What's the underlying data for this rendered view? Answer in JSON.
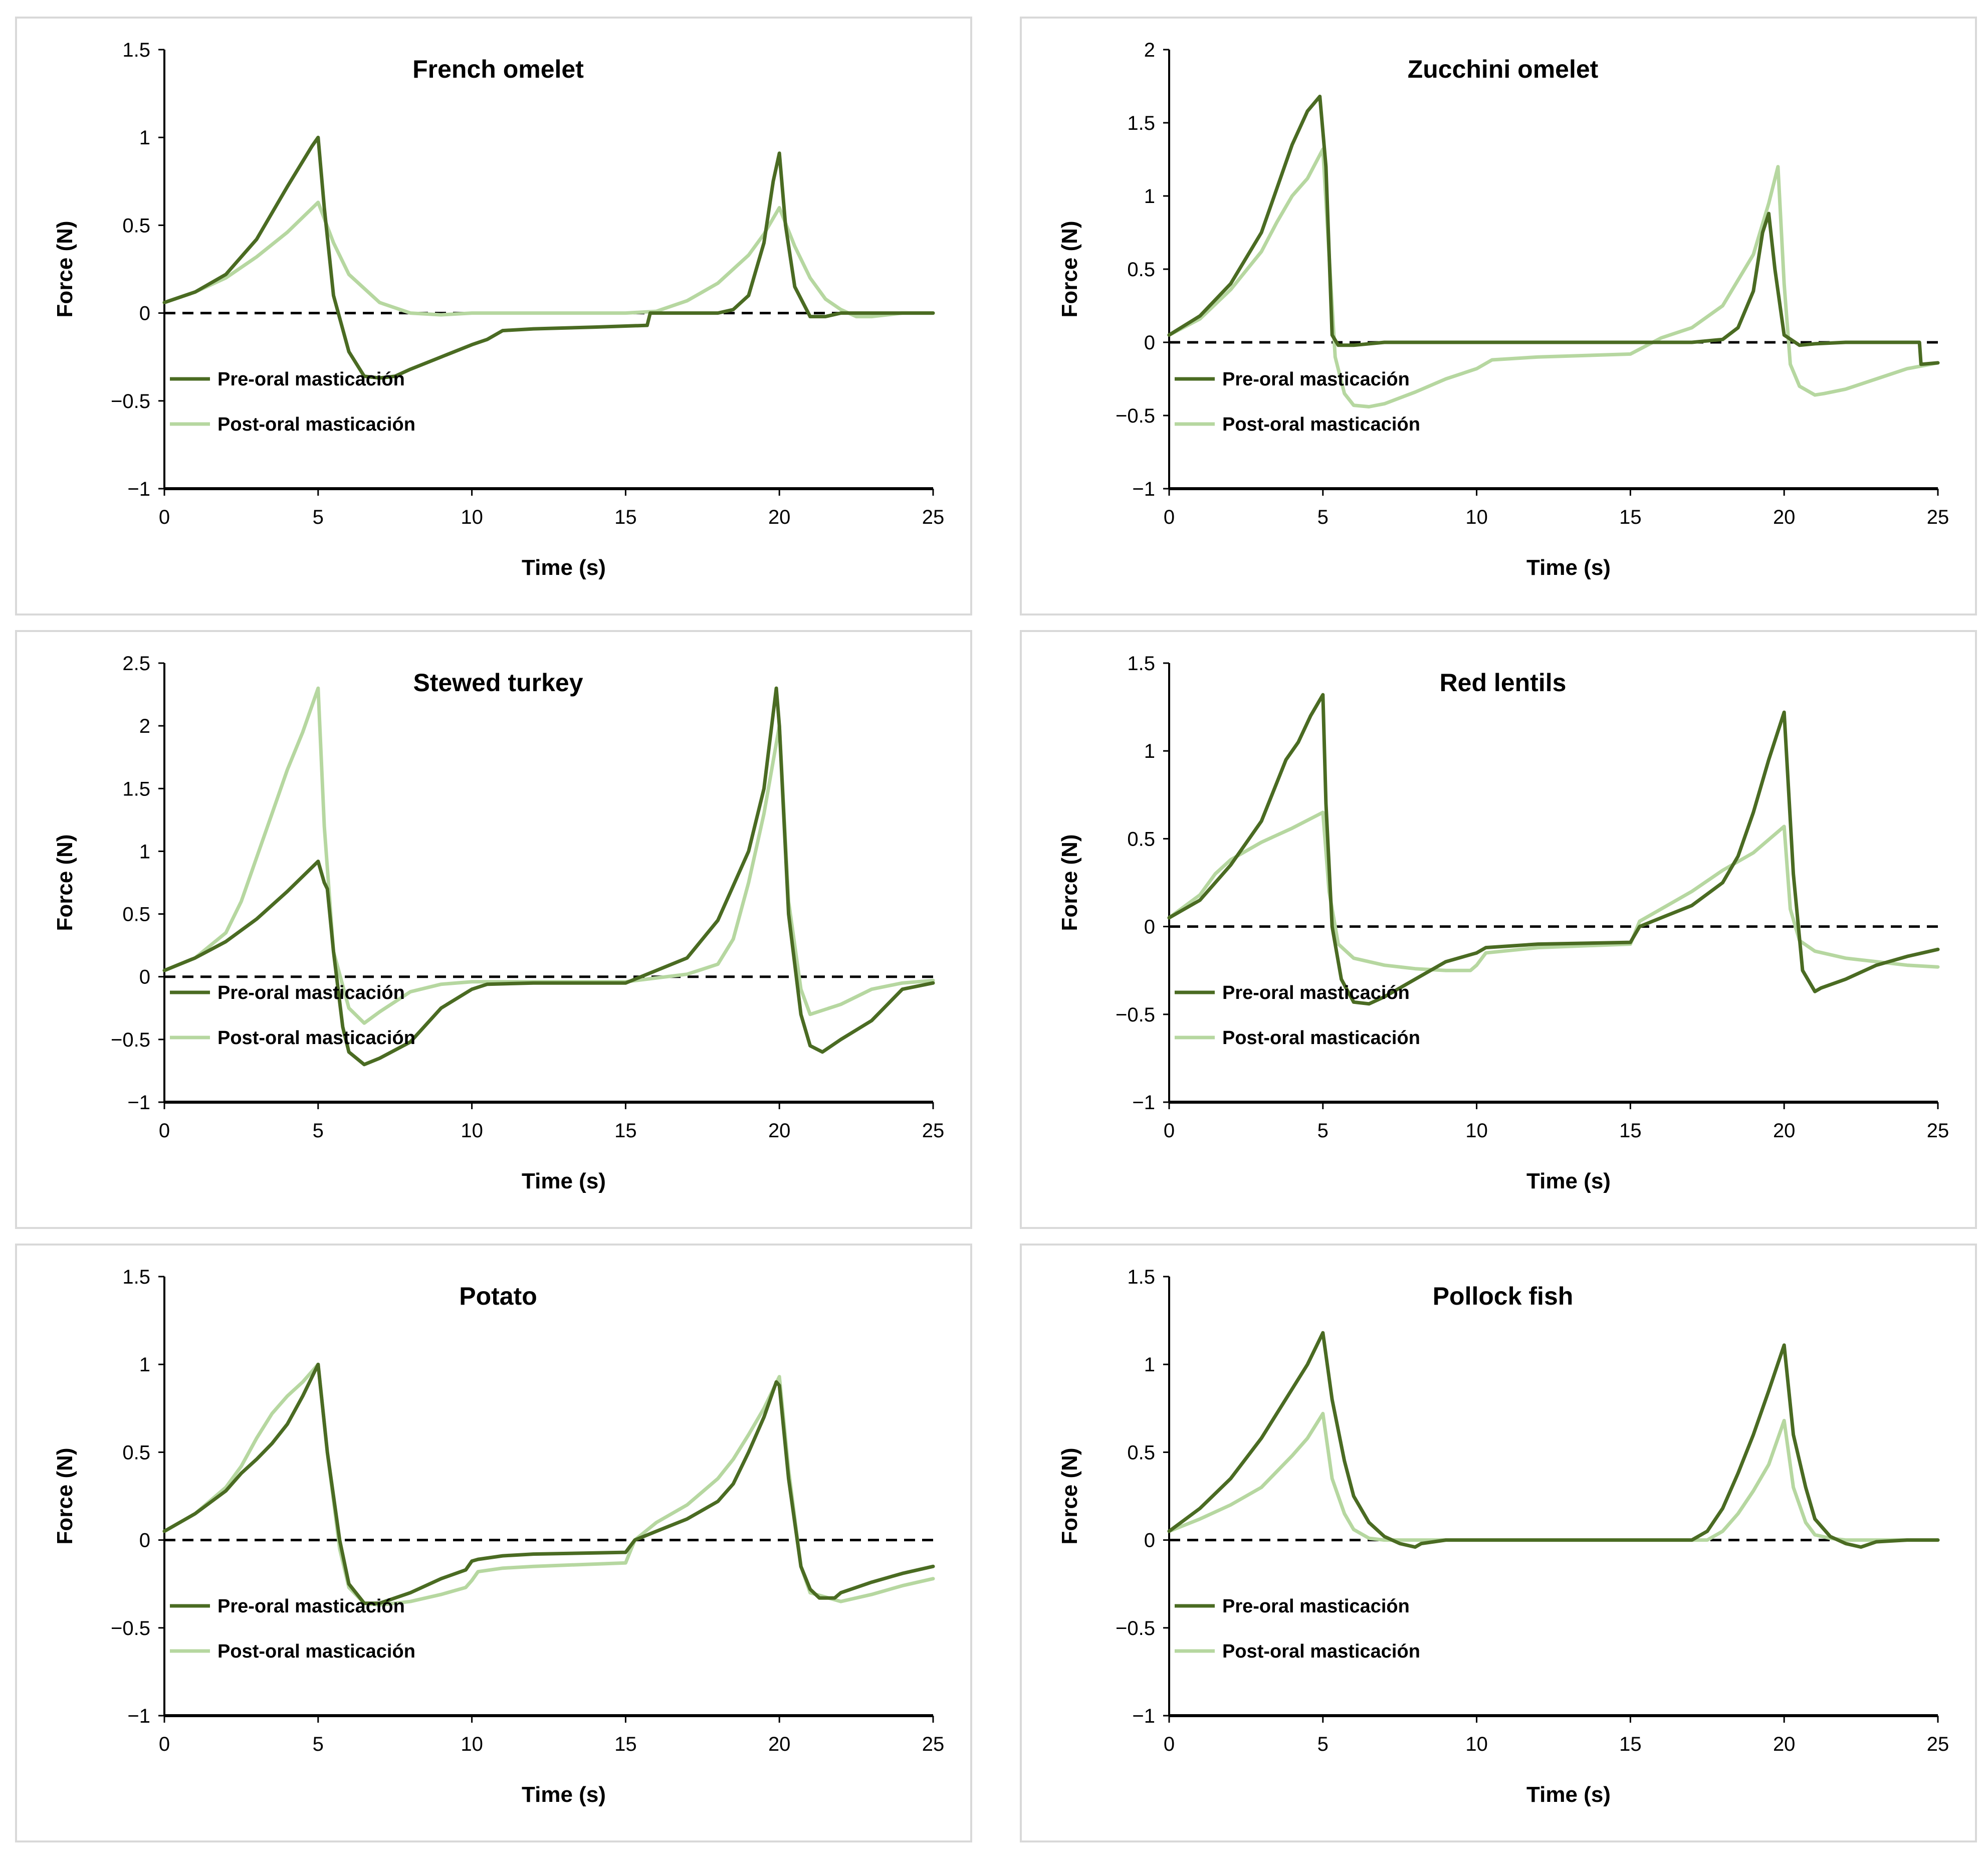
{
  "colors": {
    "pre": "#4a6b22",
    "post": "#b6d7a0",
    "zero": "#000000",
    "axis": "#000000",
    "border": "#d9d9d9"
  },
  "legend": {
    "pre_label": "Pre-oral masticación",
    "post_label": "Post-oral masticación"
  },
  "chart_data": [
    {
      "type": "line",
      "title": "French omelet",
      "xlabel": "Time (s)",
      "ylabel": "Force (N)",
      "xlim": [
        0,
        25
      ],
      "ylim": [
        -1,
        1.5
      ],
      "xticks": [
        0,
        5,
        10,
        15,
        20,
        25
      ],
      "yticks": [
        -1,
        -0.5,
        0,
        0.5,
        1,
        1.5
      ],
      "ytick_labels": [
        "−1",
        "−0.5",
        "0",
        "0.5",
        "1",
        "1.5"
      ],
      "series": [
        {
          "name": "Pre-oral masticación",
          "x": [
            0,
            1,
            2,
            3,
            4,
            4.8,
            5,
            5.2,
            5.5,
            6,
            6.5,
            7,
            7.5,
            8,
            9,
            10,
            10.5,
            11,
            12,
            14,
            15.7,
            15.8,
            17,
            18,
            18.5,
            19,
            19.5,
            19.8,
            20,
            20.2,
            20.5,
            21,
            21.5,
            22,
            23,
            25
          ],
          "y": [
            0.06,
            0.12,
            0.22,
            0.42,
            0.72,
            0.95,
            1.0,
            0.6,
            0.1,
            -0.22,
            -0.36,
            -0.37,
            -0.36,
            -0.32,
            -0.25,
            -0.18,
            -0.15,
            -0.1,
            -0.09,
            -0.08,
            -0.07,
            0,
            0,
            0,
            0.02,
            0.1,
            0.4,
            0.75,
            0.91,
            0.5,
            0.15,
            -0.02,
            -0.02,
            0,
            0,
            0
          ]
        },
        {
          "name": "Post-oral masticación",
          "x": [
            0,
            1,
            2,
            3,
            4,
            5,
            5.5,
            6,
            7,
            8,
            9,
            10,
            12,
            15,
            16,
            17,
            18,
            19,
            19.5,
            20,
            20.5,
            21,
            21.5,
            22,
            22.5,
            23,
            24,
            25
          ],
          "y": [
            0.06,
            0.12,
            0.2,
            0.32,
            0.46,
            0.63,
            0.4,
            0.22,
            0.06,
            0,
            -0.01,
            0,
            0,
            0,
            0.01,
            0.07,
            0.17,
            0.33,
            0.45,
            0.6,
            0.38,
            0.2,
            0.08,
            0.02,
            -0.02,
            -0.02,
            0,
            0
          ]
        }
      ]
    },
    {
      "type": "line",
      "title": "Zucchini omelet",
      "xlabel": "Time (s)",
      "ylabel": "Force (N)",
      "xlim": [
        0,
        25
      ],
      "ylim": [
        -1,
        2
      ],
      "xticks": [
        0,
        5,
        10,
        15,
        20,
        25
      ],
      "yticks": [
        -1,
        -0.5,
        0,
        0.5,
        1,
        1.5,
        2
      ],
      "ytick_labels": [
        "−1",
        "−0.5",
        "0",
        "0.5",
        "1",
        "1.5",
        "2"
      ],
      "series": [
        {
          "name": "Pre-oral masticación",
          "x": [
            0,
            1,
            2,
            3,
            3.5,
            4,
            4.5,
            4.9,
            5.1,
            5.3,
            5.5,
            6,
            7,
            10,
            15,
            17,
            18,
            18.5,
            19,
            19.3,
            19.5,
            19.7,
            20,
            20.5,
            21,
            22,
            24.4,
            24.45,
            25
          ],
          "y": [
            0.05,
            0.18,
            0.4,
            0.75,
            1.05,
            1.35,
            1.58,
            1.68,
            1.2,
            0.05,
            -0.02,
            -0.02,
            0,
            0,
            0,
            0,
            0.02,
            0.1,
            0.35,
            0.75,
            0.88,
            0.5,
            0.05,
            -0.02,
            -0.01,
            0,
            0,
            -0.15,
            -0.14
          ]
        },
        {
          "name": "Post-oral masticación",
          "x": [
            0,
            1,
            2,
            3,
            3.5,
            4,
            4.5,
            5,
            5.2,
            5.4,
            5.7,
            6,
            6.5,
            7,
            8,
            9,
            10,
            10.5,
            12,
            15,
            16,
            17,
            18,
            19,
            19.5,
            19.8,
            20,
            20.2,
            20.5,
            21,
            21.3,
            22,
            23,
            24,
            25
          ],
          "y": [
            0.05,
            0.16,
            0.36,
            0.62,
            0.82,
            1.0,
            1.12,
            1.32,
            0.6,
            -0.1,
            -0.35,
            -0.43,
            -0.44,
            -0.42,
            -0.34,
            -0.25,
            -0.18,
            -0.12,
            -0.1,
            -0.08,
            0.03,
            0.1,
            0.25,
            0.6,
            0.95,
            1.2,
            0.4,
            -0.15,
            -0.3,
            -0.36,
            -0.35,
            -0.32,
            -0.25,
            -0.18,
            -0.14
          ]
        }
      ]
    },
    {
      "type": "line",
      "title": "Stewed turkey",
      "xlabel": "Time (s)",
      "ylabel": "Force (N)",
      "xlim": [
        0,
        25
      ],
      "ylim": [
        -1,
        2.5
      ],
      "xticks": [
        0,
        5,
        10,
        15,
        20,
        25
      ],
      "yticks": [
        -1,
        -0.5,
        0,
        0.5,
        1,
        1.5,
        2,
        2.5
      ],
      "ytick_labels": [
        "−1",
        "−0.5",
        "0",
        "0.5",
        "1",
        "1.5",
        "2",
        "2.5"
      ],
      "series": [
        {
          "name": "Pre-oral masticación",
          "x": [
            0,
            1,
            2,
            3,
            4,
            5,
            5.2,
            5.3,
            5.5,
            5.8,
            6,
            6.5,
            7,
            8,
            9,
            10,
            10.5,
            12,
            15,
            16,
            17,
            18,
            19,
            19.5,
            19.9,
            20,
            20.3,
            20.7,
            21,
            21.4,
            22,
            23,
            24,
            25
          ],
          "y": [
            0.05,
            0.15,
            0.28,
            0.46,
            0.68,
            0.92,
            0.75,
            0.7,
            0.2,
            -0.4,
            -0.6,
            -0.7,
            -0.65,
            -0.52,
            -0.25,
            -0.1,
            -0.06,
            -0.05,
            -0.05,
            0.05,
            0.15,
            0.45,
            1.0,
            1.5,
            2.3,
            2.0,
            0.5,
            -0.3,
            -0.55,
            -0.6,
            -0.5,
            -0.35,
            -0.1,
            -0.05
          ]
        },
        {
          "name": "Post-oral masticación",
          "x": [
            0,
            1,
            2,
            2.5,
            3,
            3.5,
            4,
            4.5,
            5,
            5.2,
            5.5,
            6,
            6.5,
            7,
            8,
            9,
            10,
            12,
            15,
            17,
            18,
            18.5,
            19,
            19.5,
            20,
            20.3,
            20.7,
            21,
            22,
            23,
            24,
            25
          ],
          "y": [
            0.05,
            0.15,
            0.35,
            0.6,
            0.95,
            1.3,
            1.65,
            1.95,
            2.3,
            1.2,
            0.2,
            -0.25,
            -0.37,
            -0.28,
            -0.12,
            -0.06,
            -0.04,
            -0.04,
            -0.04,
            0.02,
            0.1,
            0.3,
            0.75,
            1.3,
            2.0,
            0.6,
            -0.1,
            -0.3,
            -0.22,
            -0.1,
            -0.05,
            -0.03
          ]
        }
      ]
    },
    {
      "type": "line",
      "title": "Red lentils",
      "xlabel": "Time (s)",
      "ylabel": "Force (N)",
      "xlim": [
        0,
        25
      ],
      "ylim": [
        -1,
        1.5
      ],
      "xticks": [
        0,
        5,
        10,
        15,
        20,
        25
      ],
      "yticks": [
        -1,
        -0.5,
        0,
        0.5,
        1,
        1.5
      ],
      "ytick_labels": [
        "−1",
        "−0.5",
        "0",
        "0.5",
        "1",
        "1.5"
      ],
      "series": [
        {
          "name": "Pre-oral masticación",
          "x": [
            0,
            1,
            2,
            3,
            3.8,
            4.2,
            4.6,
            5,
            5.1,
            5.3,
            5.6,
            6,
            6.5,
            7,
            8,
            9,
            10,
            10.3,
            12,
            15,
            15.3,
            16,
            17,
            18,
            18.5,
            19,
            19.5,
            20,
            20.3,
            20.6,
            21,
            21.2,
            22,
            23,
            24,
            25
          ],
          "y": [
            0.05,
            0.15,
            0.35,
            0.6,
            0.95,
            1.05,
            1.2,
            1.32,
            0.7,
            0.0,
            -0.3,
            -0.43,
            -0.44,
            -0.4,
            -0.3,
            -0.2,
            -0.15,
            -0.12,
            -0.1,
            -0.09,
            0.0,
            0.05,
            0.12,
            0.25,
            0.4,
            0.65,
            0.95,
            1.22,
            0.3,
            -0.25,
            -0.37,
            -0.35,
            -0.3,
            -0.22,
            -0.17,
            -0.13
          ]
        },
        {
          "name": "Post-oral masticación",
          "x": [
            0,
            1,
            1.5,
            2,
            3,
            4,
            5,
            5.2,
            5.5,
            6,
            7,
            8,
            9,
            9.8,
            10,
            10.3,
            12,
            15,
            15.3,
            16,
            17,
            18,
            19,
            20,
            20.2,
            20.5,
            21,
            22,
            23,
            24,
            25
          ],
          "y": [
            0.05,
            0.18,
            0.3,
            0.38,
            0.48,
            0.56,
            0.65,
            0.2,
            -0.1,
            -0.18,
            -0.22,
            -0.24,
            -0.25,
            -0.25,
            -0.22,
            -0.15,
            -0.12,
            -0.1,
            0.03,
            0.1,
            0.2,
            0.32,
            0.42,
            0.57,
            0.1,
            -0.08,
            -0.14,
            -0.18,
            -0.2,
            -0.22,
            -0.23
          ]
        }
      ]
    },
    {
      "type": "line",
      "title": "Potato",
      "xlabel": "Time (s)",
      "ylabel": "Force (N)",
      "xlim": [
        0,
        25
      ],
      "ylim": [
        -1,
        1.5
      ],
      "xticks": [
        0,
        5,
        10,
        15,
        20,
        25
      ],
      "yticks": [
        -1,
        -0.5,
        0,
        0.5,
        1,
        1.5
      ],
      "ytick_labels": [
        "−1",
        "−0.5",
        "0",
        "0.5",
        "1",
        "1.5"
      ],
      "series": [
        {
          "name": "Pre-oral masticación",
          "x": [
            0,
            1,
            2,
            2.5,
            3,
            3.5,
            4,
            4.5,
            5,
            5.3,
            5.7,
            6,
            6.5,
            7,
            8,
            9,
            9.8,
            10,
            10.2,
            11,
            12,
            15,
            15.3,
            16,
            17,
            18,
            18.5,
            19,
            19.5,
            19.9,
            20,
            20.3,
            20.7,
            21,
            21.3,
            21.8,
            22,
            23,
            24,
            25
          ],
          "y": [
            0.05,
            0.15,
            0.28,
            0.38,
            0.46,
            0.55,
            0.66,
            0.82,
            1.0,
            0.5,
            0.0,
            -0.25,
            -0.36,
            -0.36,
            -0.3,
            -0.22,
            -0.17,
            -0.12,
            -0.11,
            -0.09,
            -0.08,
            -0.07,
            0.0,
            0.05,
            0.12,
            0.22,
            0.32,
            0.5,
            0.7,
            0.9,
            0.88,
            0.35,
            -0.15,
            -0.28,
            -0.33,
            -0.33,
            -0.3,
            -0.24,
            -0.19,
            -0.15
          ]
        },
        {
          "name": "Post-oral masticación",
          "x": [
            0,
            1,
            2,
            2.5,
            3,
            3.5,
            4,
            4.5,
            5,
            5.3,
            5.7,
            6,
            6.5,
            7,
            8,
            9,
            9.8,
            10,
            10.2,
            11,
            12,
            15,
            15.3,
            16,
            17,
            18,
            18.5,
            19,
            19.5,
            20,
            20.3,
            20.7,
            21,
            22,
            23,
            24,
            25
          ],
          "y": [
            0.05,
            0.15,
            0.3,
            0.42,
            0.58,
            0.72,
            0.82,
            0.9,
            1.0,
            0.5,
            -0.05,
            -0.27,
            -0.36,
            -0.37,
            -0.35,
            -0.31,
            -0.27,
            -0.23,
            -0.18,
            -0.16,
            -0.15,
            -0.13,
            0.0,
            0.1,
            0.2,
            0.35,
            0.46,
            0.6,
            0.75,
            0.93,
            0.4,
            -0.15,
            -0.3,
            -0.35,
            -0.31,
            -0.26,
            -0.22
          ]
        }
      ]
    },
    {
      "type": "line",
      "title": "Pollock fish",
      "xlabel": "Time (s)",
      "ylabel": "Force (N)",
      "xlim": [
        0,
        25
      ],
      "ylim": [
        -1,
        1.5
      ],
      "xticks": [
        0,
        5,
        10,
        15,
        20,
        25
      ],
      "yticks": [
        -1,
        -0.5,
        0,
        0.5,
        1,
        1.5
      ],
      "ytick_labels": [
        "−1",
        "−0.5",
        "0",
        "0.5",
        "1",
        "1.5"
      ],
      "series": [
        {
          "name": "Pre-oral masticación",
          "x": [
            0,
            1,
            2,
            3,
            4,
            4.5,
            5,
            5.3,
            5.7,
            6,
            6.5,
            7,
            7.5,
            8,
            8.2,
            9,
            10,
            15,
            17,
            17.5,
            18,
            18.5,
            19,
            19.5,
            20,
            20.3,
            20.7,
            21,
            21.5,
            22,
            22.5,
            23,
            24,
            25
          ],
          "y": [
            0.05,
            0.18,
            0.35,
            0.58,
            0.86,
            1.0,
            1.18,
            0.8,
            0.45,
            0.25,
            0.1,
            0.02,
            -0.02,
            -0.04,
            -0.02,
            0,
            0,
            0,
            0,
            0.05,
            0.18,
            0.38,
            0.6,
            0.85,
            1.11,
            0.6,
            0.3,
            0.12,
            0.02,
            -0.02,
            -0.04,
            -0.01,
            0,
            0
          ]
        },
        {
          "name": "Post-oral masticación",
          "x": [
            0,
            1,
            2,
            3,
            4,
            4.5,
            5,
            5.3,
            5.7,
            6,
            6.5,
            7,
            8,
            10,
            15,
            17.5,
            18,
            18.5,
            19,
            19.5,
            20,
            20.3,
            20.7,
            21,
            21.5,
            22,
            25
          ],
          "y": [
            0.05,
            0.12,
            0.2,
            0.3,
            0.48,
            0.58,
            0.72,
            0.35,
            0.15,
            0.06,
            0.01,
            0,
            0,
            0,
            0,
            0,
            0.05,
            0.15,
            0.28,
            0.43,
            0.68,
            0.3,
            0.1,
            0.03,
            0.01,
            0,
            0
          ]
        }
      ]
    }
  ]
}
